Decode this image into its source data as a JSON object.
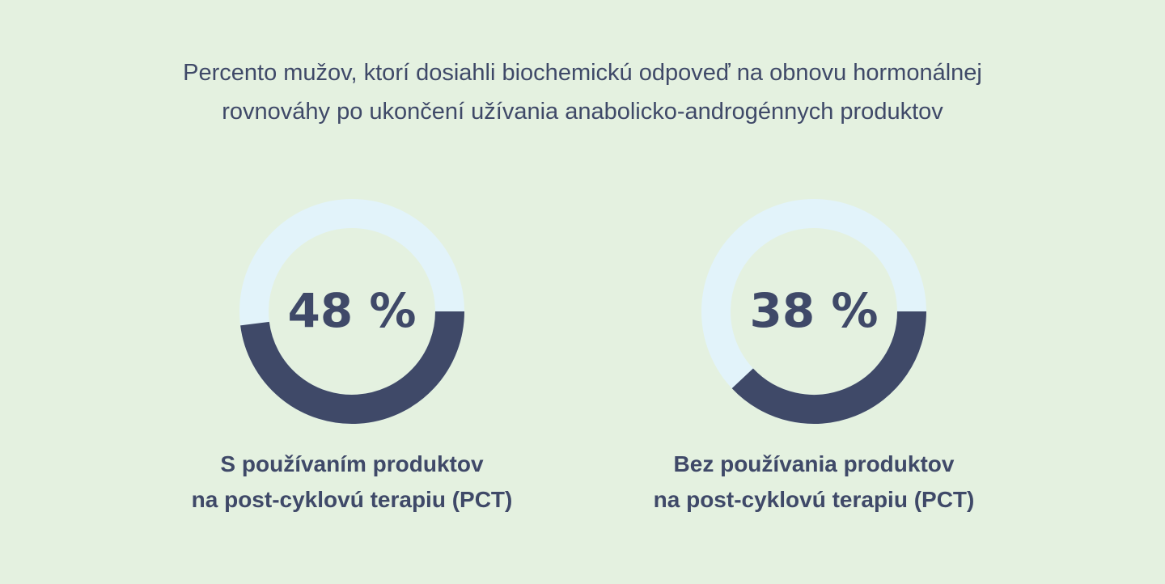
{
  "colors": {
    "background": "#e4f1e0",
    "text": "#3f4968",
    "ring_track": "#e2f3fa",
    "ring_fill": "#3f4968"
  },
  "header": {
    "title_line1": "Percento mužov, ktorí dosiahli biochemickú odpoveď na obnovu hormonálnej",
    "title_line2": "rovnováhy po ukončení užívania anabolicko-androgénnych produktov"
  },
  "chart_data": [
    {
      "type": "pie",
      "variant": "donut",
      "value": 48,
      "unit": "%",
      "value_label": "48 %",
      "label_line1": "S používaním produktov",
      "label_line2": "na post-cyklovú terapiu (PCT)"
    },
    {
      "type": "pie",
      "variant": "donut",
      "value": 38,
      "unit": "%",
      "value_label": "38 %",
      "label_line1": "Bez používania produktov",
      "label_line2": "na post-cyklovú terapiu (PCT)"
    }
  ]
}
